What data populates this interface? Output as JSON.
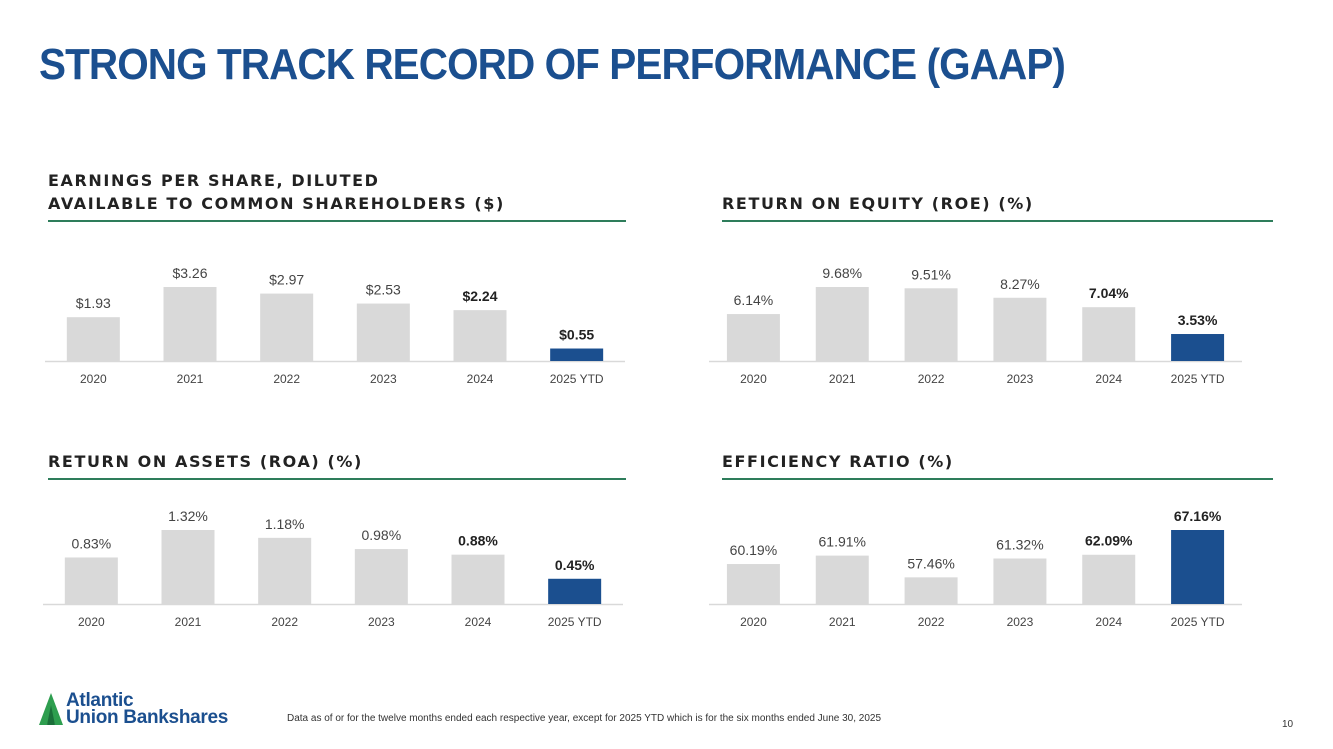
{
  "page": {
    "title": "STRONG TRACK RECORD OF PERFORMANCE (GAAP)",
    "footnote": "Data as of or for the twelve months ended each respective year, except for 2025 YTD which is for the six months ended June 30, 2025",
    "page_number": "10",
    "logo": {
      "line1": "Atlantic",
      "line2": "Union Bankshares"
    }
  },
  "colors": {
    "title": "#1b4f8f",
    "bar": "#d9d9d9",
    "highlight_bar": "#1b4f8f",
    "rule": "#2e7d5b"
  },
  "chart_data": [
    {
      "type": "bar",
      "title_lines": [
        "EARNINGS PER SHARE, DILUTED",
        "AVAILABLE TO COMMON SHAREHOLDERS ($)"
      ],
      "categories": [
        "2020",
        "2021",
        "2022",
        "2023",
        "2024",
        "2025 YTD"
      ],
      "values": [
        1.93,
        3.26,
        2.97,
        2.53,
        2.24,
        0.55
      ],
      "labels": [
        "$1.93",
        "$3.26",
        "$2.97",
        "$2.53",
        "$2.24",
        "$0.55"
      ],
      "bold_labels": [
        4,
        5
      ],
      "highlight_index": 5,
      "ylim": [
        0,
        3.26
      ]
    },
    {
      "type": "bar",
      "title_lines": [
        "RETURN ON EQUITY (ROE) (%)"
      ],
      "categories": [
        "2020",
        "2021",
        "2022",
        "2023",
        "2024",
        "2025 YTD"
      ],
      "values": [
        6.14,
        9.68,
        9.51,
        8.27,
        7.04,
        3.53
      ],
      "labels": [
        "6.14%",
        "9.68%",
        "9.51%",
        "8.27%",
        "7.04%",
        "3.53%"
      ],
      "bold_labels": [
        4,
        5
      ],
      "highlight_index": 5,
      "ylim": [
        0,
        9.68
      ]
    },
    {
      "type": "bar",
      "title_lines": [
        "RETURN ON ASSETS (ROA) (%)"
      ],
      "categories": [
        "2020",
        "2021",
        "2022",
        "2023",
        "2024",
        "2025 YTD"
      ],
      "values": [
        0.83,
        1.32,
        1.18,
        0.98,
        0.88,
        0.45
      ],
      "labels": [
        "0.83%",
        "1.32%",
        "1.18%",
        "0.98%",
        "0.88%",
        "0.45%"
      ],
      "bold_labels": [
        4,
        5
      ],
      "highlight_index": 5,
      "ylim": [
        0,
        1.32
      ]
    },
    {
      "type": "bar",
      "title_lines": [
        "EFFICIENCY RATIO (%)"
      ],
      "categories": [
        "2020",
        "2021",
        "2022",
        "2023",
        "2024",
        "2025 YTD"
      ],
      "values": [
        60.19,
        61.91,
        57.46,
        61.32,
        62.09,
        67.16
      ],
      "labels": [
        "60.19%",
        "61.91%",
        "57.46%",
        "61.32%",
        "62.09%",
        "67.16%"
      ],
      "bold_labels": [
        4,
        5
      ],
      "highlight_index": 5,
      "ylim": [
        52,
        67.16
      ]
    }
  ]
}
